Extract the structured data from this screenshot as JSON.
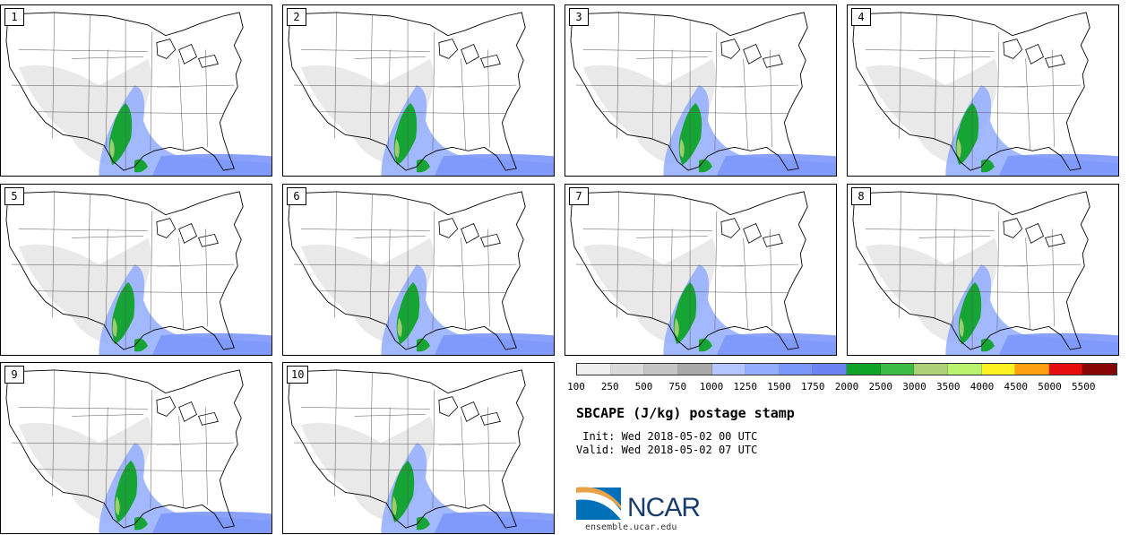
{
  "panels": [
    {
      "label": "1"
    },
    {
      "label": "2"
    },
    {
      "label": "3"
    },
    {
      "label": "4"
    },
    {
      "label": "5"
    },
    {
      "label": "6"
    },
    {
      "label": "7"
    },
    {
      "label": "8"
    },
    {
      "label": "9"
    },
    {
      "label": "10"
    }
  ],
  "colorbar": {
    "colors": [
      "#efefef",
      "#dadada",
      "#c5c5c5",
      "#a9a9a9",
      "#b4c6ff",
      "#93adff",
      "#7c97fb",
      "#6b82f3",
      "#0fa32a",
      "#3cbb45",
      "#aed077",
      "#baf36e",
      "#fff222",
      "#ffa010",
      "#e60e0c",
      "#870606"
    ],
    "labels": [
      "100",
      "250",
      "500",
      "750",
      "1000",
      "1250",
      "1500",
      "1750",
      "2000",
      "2500",
      "3000",
      "3500",
      "4000",
      "4500",
      "5000",
      "5500"
    ]
  },
  "title": "SBCAPE (J/kg) postage stamp",
  "init": " Init: Wed 2018-05-02 00 UTC",
  "valid": "Valid: Wed 2018-05-02 07 UTC",
  "logo": {
    "text": "NCAR",
    "site": "ensemble.ucar.edu",
    "color": "#1a3d6d",
    "accent": "#0070b8"
  }
}
